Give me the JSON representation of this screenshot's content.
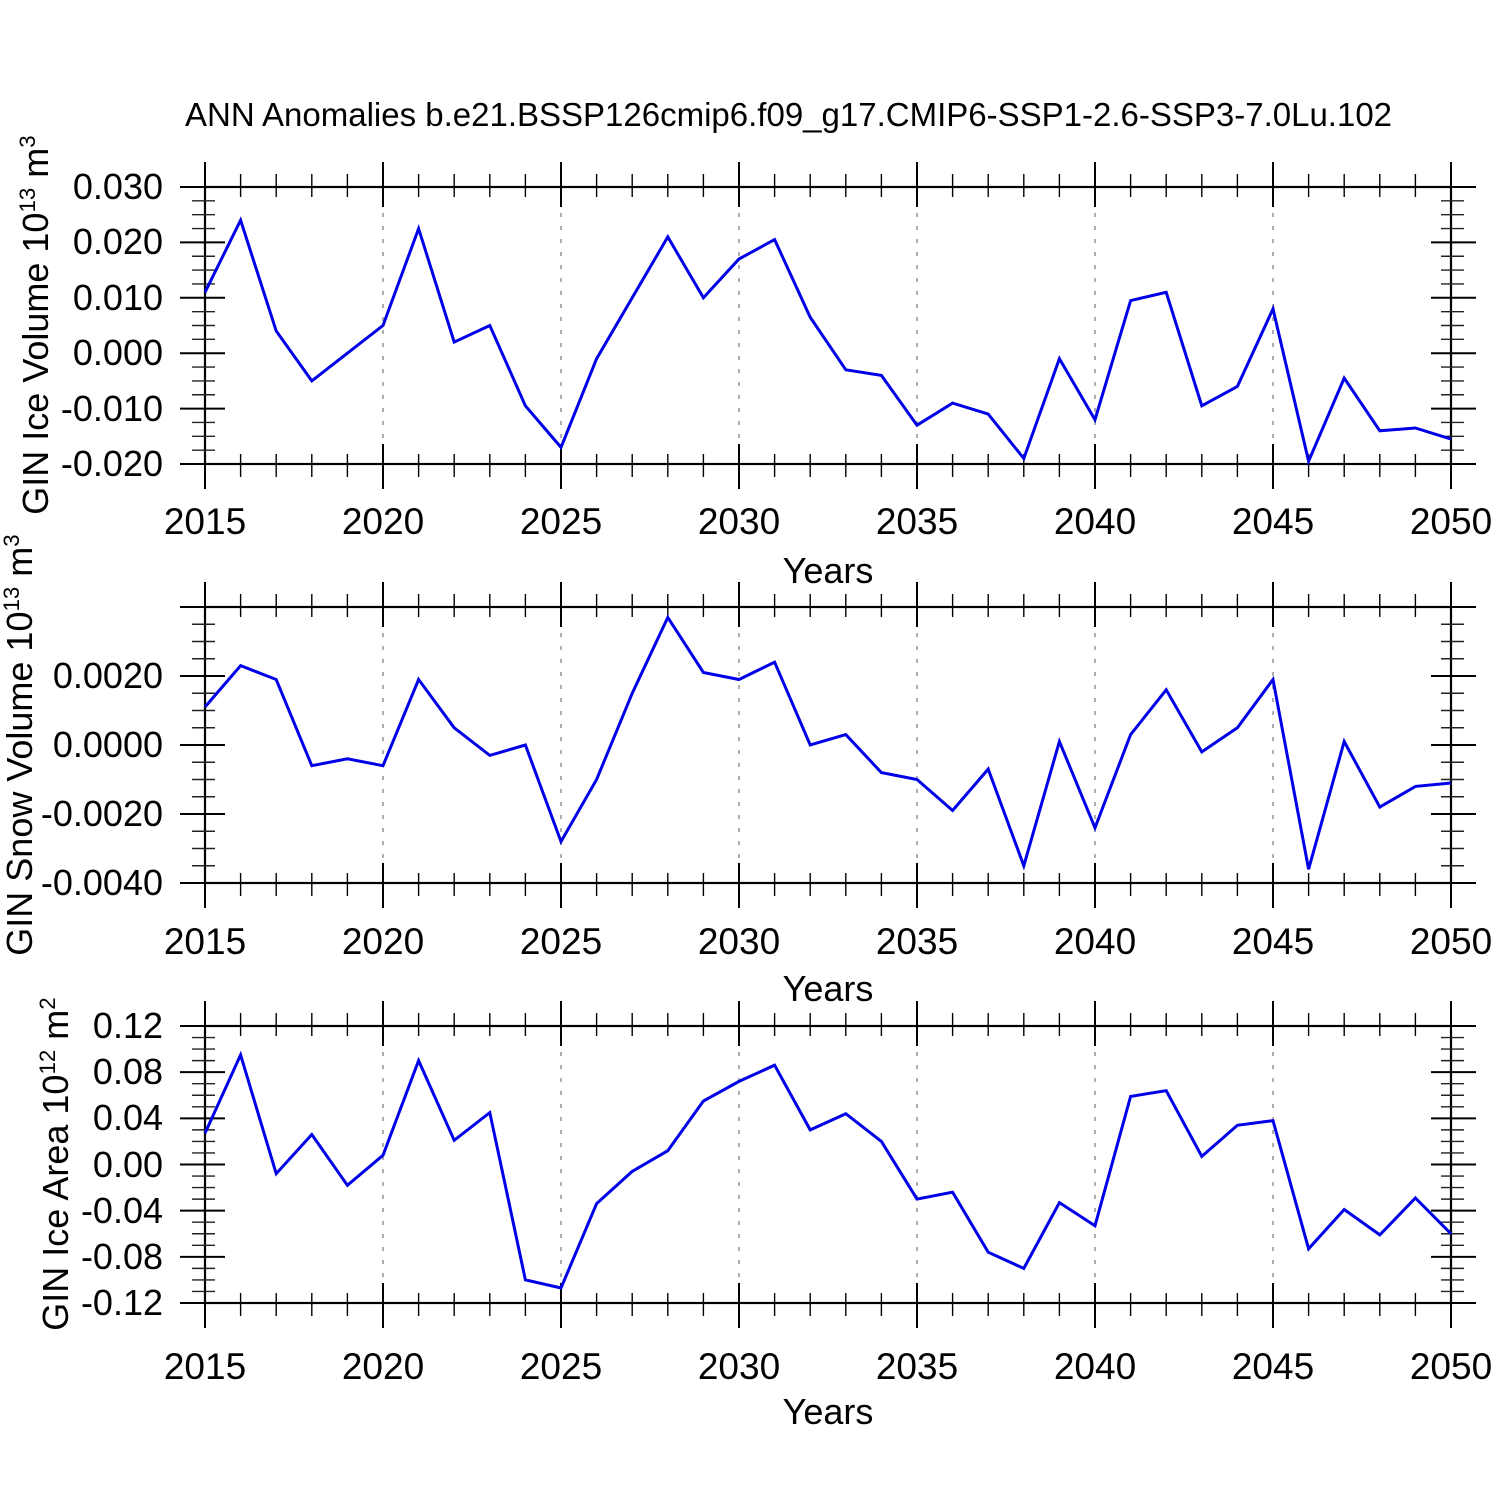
{
  "title": "ANN Anomalies b.e21.BSSP126cmip6.f09_g17.CMIP6-SSP1-2.6-SSP3-7.0Lu.102",
  "line_color": "#0000e8",
  "grid_color": "#9a9a9a",
  "frame_color": "#000000",
  "chart_data": [
    {
      "type": "line",
      "name": "GIN Ice Volume",
      "ylabel_text": "GIN Ice Volume 10^13 m^3",
      "ylabel": {
        "base": "GIN Ice Volume 10",
        "exponent": "13",
        "unit": " m",
        "unit_exponent": "3"
      },
      "xlabel": "Years",
      "x": [
        2015,
        2016,
        2017,
        2018,
        2019,
        2020,
        2021,
        2022,
        2023,
        2024,
        2025,
        2026,
        2027,
        2028,
        2029,
        2030,
        2031,
        2032,
        2033,
        2034,
        2035,
        2036,
        2037,
        2038,
        2039,
        2040,
        2041,
        2042,
        2043,
        2044,
        2045,
        2046,
        2047,
        2048,
        2049,
        2050
      ],
      "values": [
        0.011,
        0.024,
        0.004,
        -0.005,
        0.0,
        0.005,
        0.0225,
        0.002,
        0.005,
        -0.0095,
        -0.017,
        -0.001,
        0.01,
        0.021,
        0.01,
        0.017,
        0.0205,
        0.0065,
        -0.003,
        -0.004,
        -0.013,
        -0.009,
        -0.011,
        -0.019,
        -0.001,
        -0.012,
        0.0095,
        0.011,
        -0.0095,
        -0.006,
        0.008,
        -0.0195,
        -0.0045,
        -0.014,
        -0.0135,
        -0.0155
      ],
      "ylim": [
        -0.02,
        0.03
      ],
      "ytick_values": [
        0.03,
        0.02,
        0.01,
        0.0,
        -0.01,
        -0.02
      ],
      "ytick_labels": [
        "0.030",
        "0.020",
        "0.010",
        "0.000",
        "-0.010",
        "-0.020"
      ],
      "extra_major_ticks": [],
      "y_minor_step": 0.0025,
      "xlim": [
        2015,
        2050
      ],
      "xtick_values": [
        2015,
        2020,
        2025,
        2030,
        2035,
        2040,
        2045,
        2050
      ],
      "xtick_labels": [
        "2015",
        "2020",
        "2025",
        "2030",
        "2035",
        "2040",
        "2045",
        "2050"
      ],
      "x_minor_step": 1,
      "gridlines_x": [
        2020,
        2025,
        2030,
        2035,
        2040,
        2045
      ],
      "legend": "none",
      "grid": "vertical-dashed"
    },
    {
      "type": "line",
      "name": "GIN Snow Volume",
      "ylabel_text": "GIN Snow Volume 10^13 m^3",
      "ylabel": {
        "base": "GIN Snow Volume 10",
        "exponent": "13",
        "unit": " m",
        "unit_exponent": "3"
      },
      "xlabel": "Years",
      "x": [
        2015,
        2016,
        2017,
        2018,
        2019,
        2020,
        2021,
        2022,
        2023,
        2024,
        2025,
        2026,
        2027,
        2028,
        2029,
        2030,
        2031,
        2032,
        2033,
        2034,
        2035,
        2036,
        2037,
        2038,
        2039,
        2040,
        2041,
        2042,
        2043,
        2044,
        2045,
        2046,
        2047,
        2048,
        2049,
        2050
      ],
      "values": [
        0.0011,
        0.0023,
        0.0019,
        -0.0006,
        -0.0004,
        -0.0006,
        0.0019,
        0.0005,
        -0.0003,
        0.0,
        -0.0028,
        -0.001,
        0.0015,
        0.0037,
        0.0021,
        0.0019,
        0.0024,
        0.0,
        0.0003,
        -0.0008,
        -0.001,
        -0.0019,
        -0.0007,
        -0.0035,
        0.0001,
        -0.0024,
        0.0003,
        0.0016,
        -0.0002,
        0.0005,
        0.0019,
        -0.0036,
        0.0001,
        -0.0018,
        -0.0012,
        -0.0011
      ],
      "ylim": [
        -0.004,
        0.004
      ],
      "ytick_values": [
        0.002,
        0.0,
        -0.002,
        -0.004
      ],
      "ytick_labels": [
        "0.0020",
        "0.0000",
        "-0.0020",
        "-0.0040"
      ],
      "extra_major_ticks": [
        0.004
      ],
      "y_minor_step": 0.0005,
      "xlim": [
        2015,
        2050
      ],
      "xtick_values": [
        2015,
        2020,
        2025,
        2030,
        2035,
        2040,
        2045,
        2050
      ],
      "xtick_labels": [
        "2015",
        "2020",
        "2025",
        "2030",
        "2035",
        "2040",
        "2045",
        "2050"
      ],
      "x_minor_step": 1,
      "gridlines_x": [
        2020,
        2025,
        2030,
        2035,
        2040,
        2045
      ],
      "legend": "none",
      "grid": "vertical-dashed"
    },
    {
      "type": "line",
      "name": "GIN Ice Area",
      "ylabel_text": "GIN Ice Area 10^12 m^2",
      "ylabel": {
        "base": "GIN Ice Area 10",
        "exponent": "12",
        "unit": " m",
        "unit_exponent": "2"
      },
      "xlabel": "Years",
      "x": [
        2015,
        2016,
        2017,
        2018,
        2019,
        2020,
        2021,
        2022,
        2023,
        2024,
        2025,
        2026,
        2027,
        2028,
        2029,
        2030,
        2031,
        2032,
        2033,
        2034,
        2035,
        2036,
        2037,
        2038,
        2039,
        2040,
        2041,
        2042,
        2043,
        2044,
        2045,
        2046,
        2047,
        2048,
        2049,
        2050
      ],
      "values": [
        0.027,
        0.095,
        -0.008,
        0.026,
        -0.018,
        0.008,
        0.09,
        0.021,
        0.045,
        -0.1,
        -0.107,
        -0.034,
        -0.006,
        0.012,
        0.055,
        0.072,
        0.086,
        0.03,
        0.044,
        0.02,
        -0.03,
        -0.024,
        -0.076,
        -0.09,
        -0.033,
        -0.053,
        0.059,
        0.064,
        0.007,
        0.034,
        0.038,
        -0.073,
        -0.039,
        -0.061,
        -0.029,
        -0.06
      ],
      "ylim": [
        -0.12,
        0.12
      ],
      "ytick_values": [
        0.12,
        0.08,
        0.04,
        0.0,
        -0.04,
        -0.08,
        -0.12
      ],
      "ytick_labels": [
        "0.12",
        "0.08",
        "0.04",
        "0.00",
        "-0.04",
        "-0.08",
        "-0.12"
      ],
      "extra_major_ticks": [],
      "y_minor_step": 0.01,
      "xlim": [
        2015,
        2050
      ],
      "xtick_values": [
        2015,
        2020,
        2025,
        2030,
        2035,
        2040,
        2045,
        2050
      ],
      "xtick_labels": [
        "2015",
        "2020",
        "2025",
        "2030",
        "2035",
        "2040",
        "2045",
        "2050"
      ],
      "x_minor_step": 1,
      "gridlines_x": [
        2020,
        2025,
        2030,
        2035,
        2040,
        2045
      ],
      "legend": "none",
      "grid": "vertical-dashed"
    }
  ]
}
